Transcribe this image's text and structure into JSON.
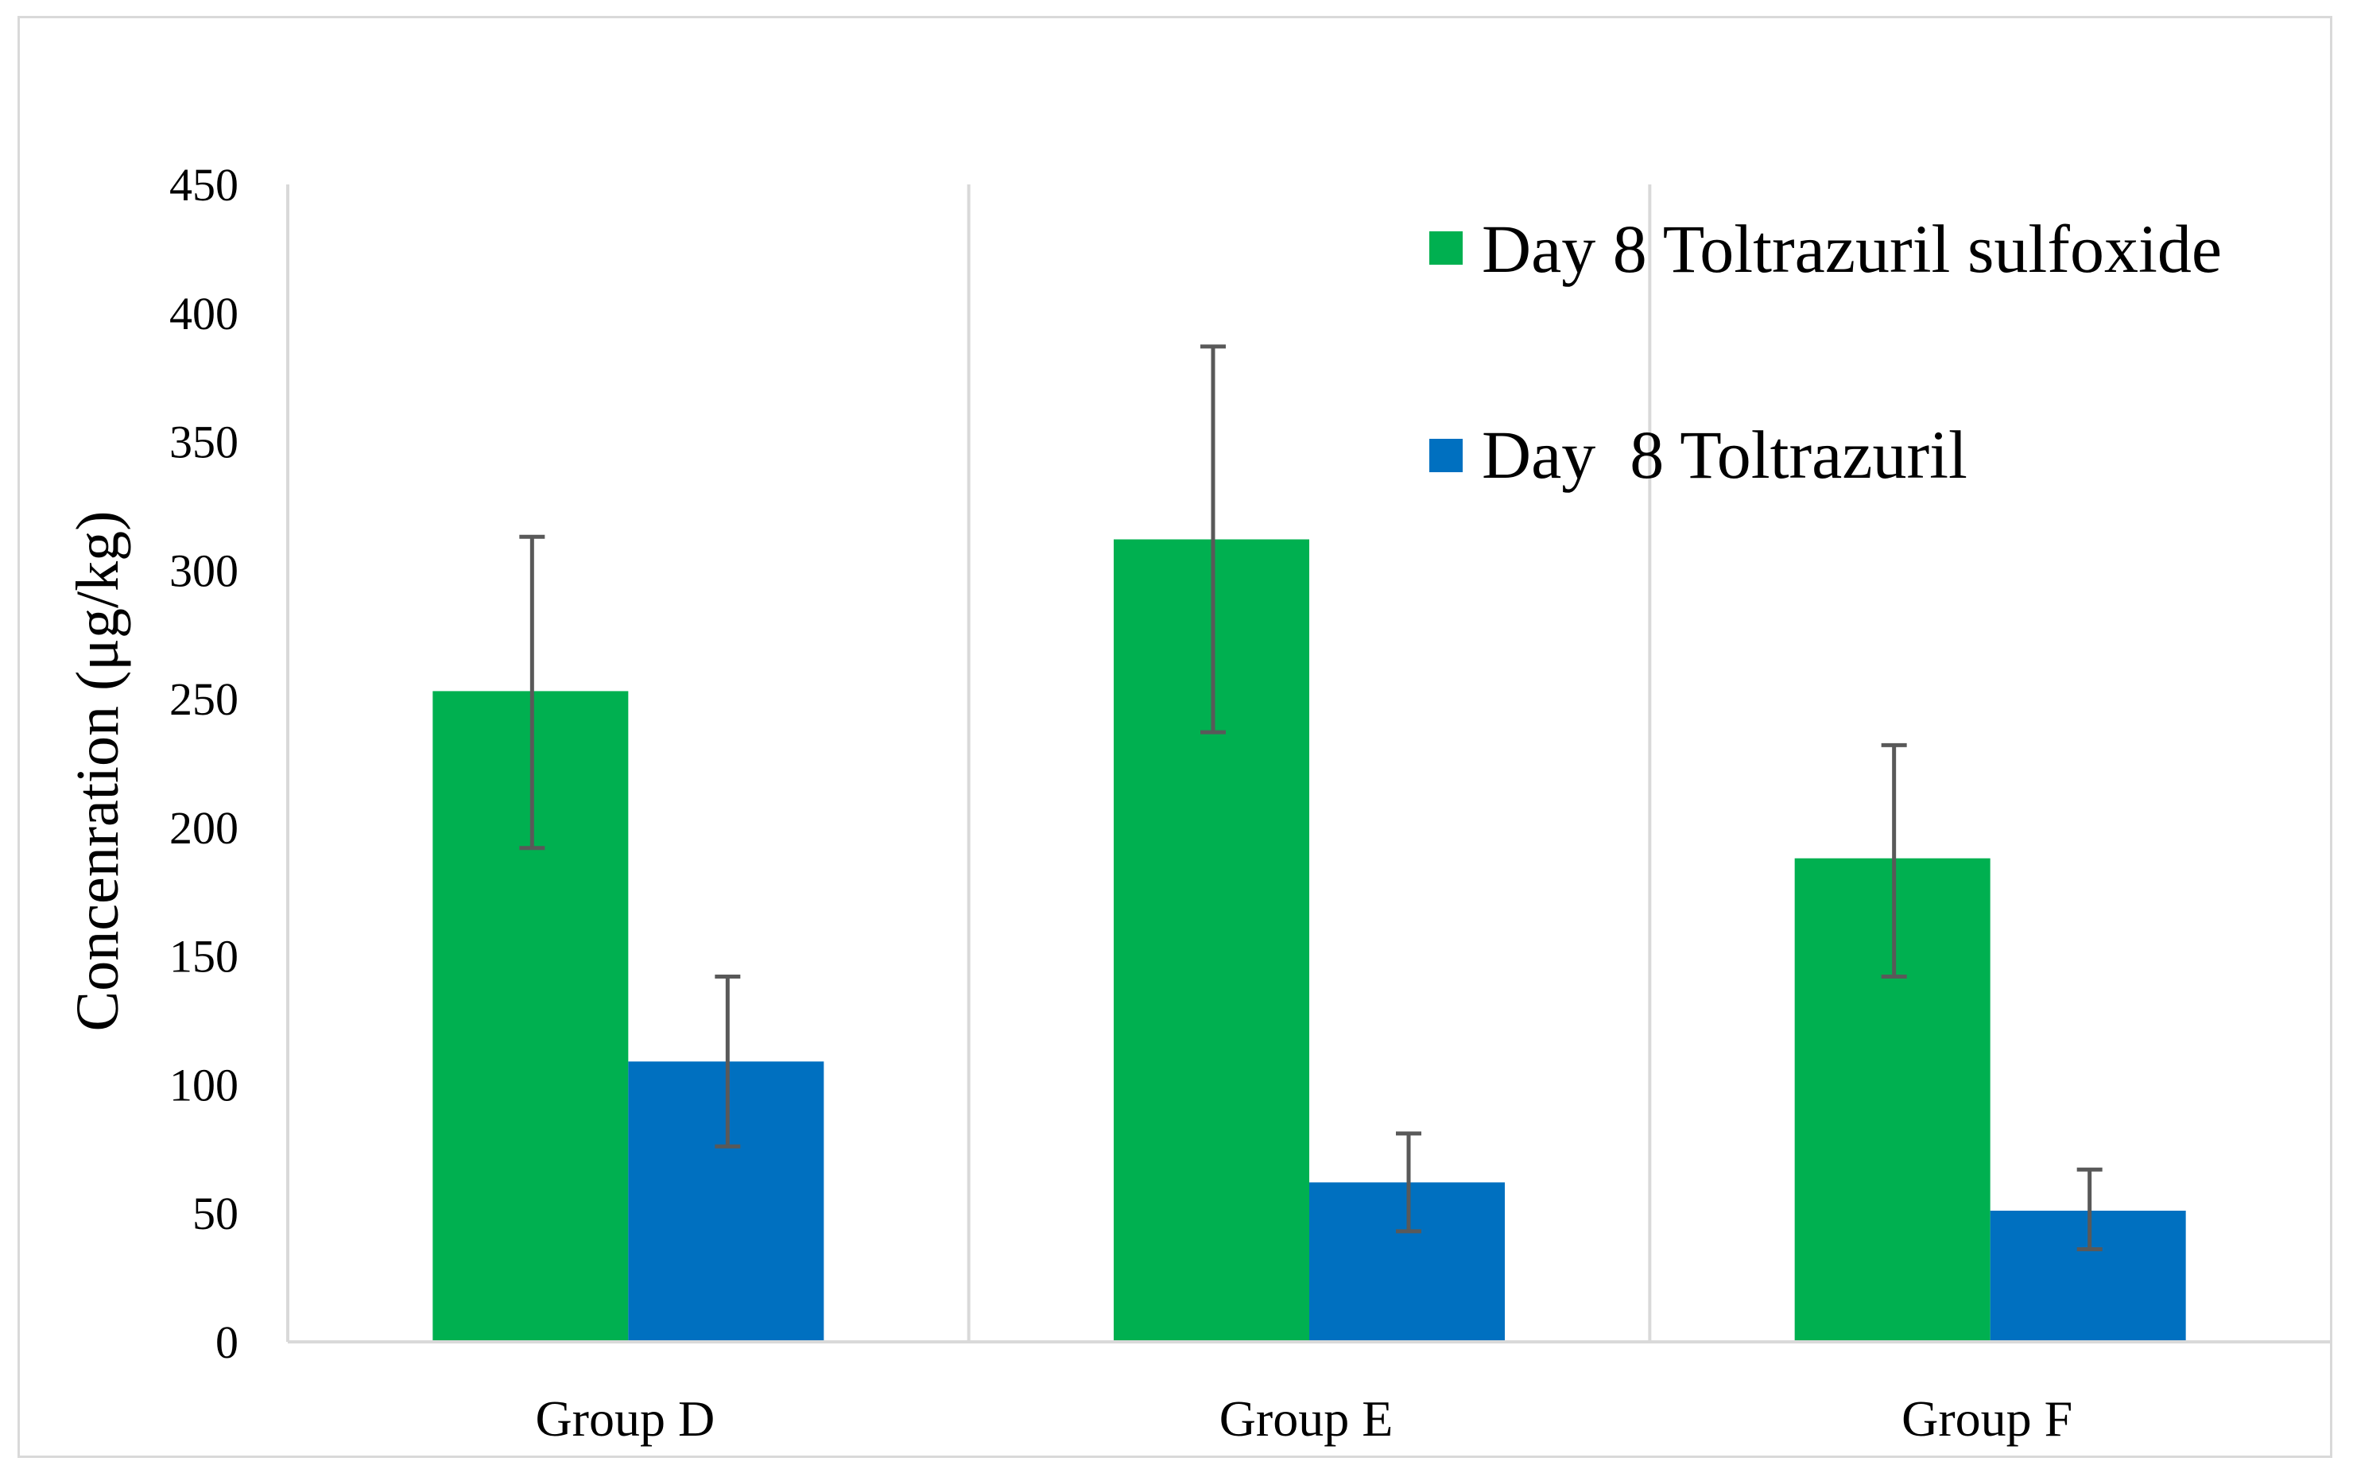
{
  "chart_data": {
    "type": "bar",
    "title": "",
    "xlabel": "",
    "ylabel": "Concenration (μg/kg)",
    "ylim": [
      0,
      450
    ],
    "yticks": [
      0,
      50,
      100,
      150,
      200,
      250,
      300,
      350,
      400,
      450
    ],
    "categories": [
      "Group D",
      "Group E",
      "Group F"
    ],
    "series": [
      {
        "name": "Day 8 Toltrazuril sulfoxide",
        "color": "#00b050",
        "values": [
          253,
          312,
          188
        ],
        "error_low": [
          192,
          237,
          142
        ],
        "error_high": [
          313,
          387,
          232
        ]
      },
      {
        "name": "Day  8 Toltrazuril",
        "color": "#0070c0",
        "values": [
          109,
          62,
          51
        ],
        "error_low": [
          76,
          43,
          36
        ],
        "error_high": [
          142,
          81,
          67
        ]
      }
    ],
    "legend_position": "top-right",
    "grid": "vertical category separators",
    "axis_color": "#d9d9d9",
    "error_bar_color": "#595959"
  }
}
